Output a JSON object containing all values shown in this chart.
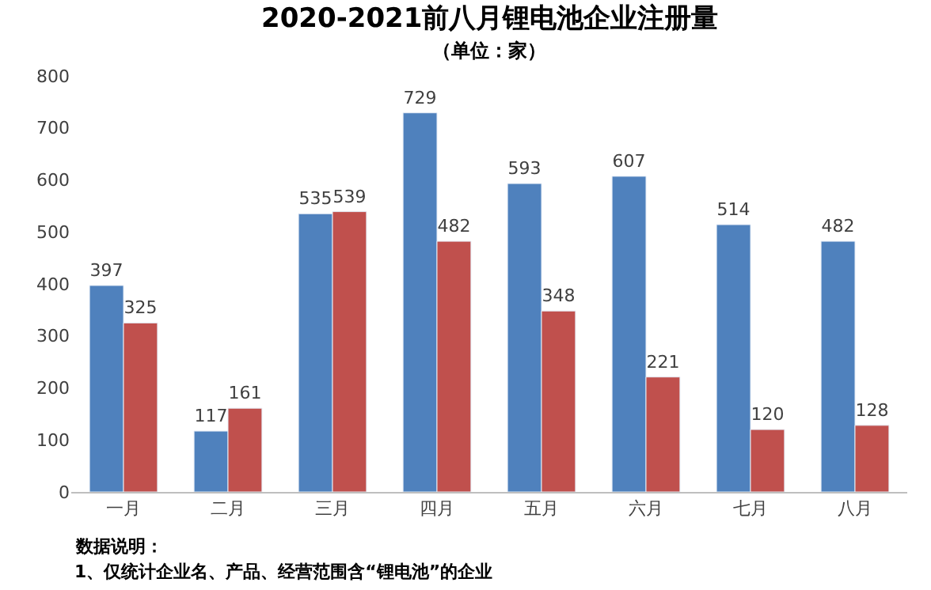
{
  "chart_data": {
    "type": "bar",
    "title": "2020-2021前八月锂电池企业注册量",
    "subtitle": "（单位：家）",
    "categories": [
      "一月",
      "二月",
      "三月",
      "四月",
      "五月",
      "六月",
      "七月",
      "八月"
    ],
    "series": [
      {
        "color": "#4f81bd",
        "values": [
          397,
          117,
          535,
          729,
          593,
          607,
          514,
          482
        ]
      },
      {
        "color": "#c0504d",
        "values": [
          325,
          161,
          539,
          482,
          348,
          221,
          120,
          128
        ]
      }
    ],
    "ylim": [
      0,
      800
    ],
    "yticks": [
      0,
      100,
      200,
      300,
      400,
      500,
      600,
      700,
      800
    ],
    "grid": false,
    "legend": false,
    "data_labels": true,
    "annotations": [
      "数据说明：",
      "1、仅统计企业名、产品、经营范围含“锂电池”的企业"
    ]
  }
}
